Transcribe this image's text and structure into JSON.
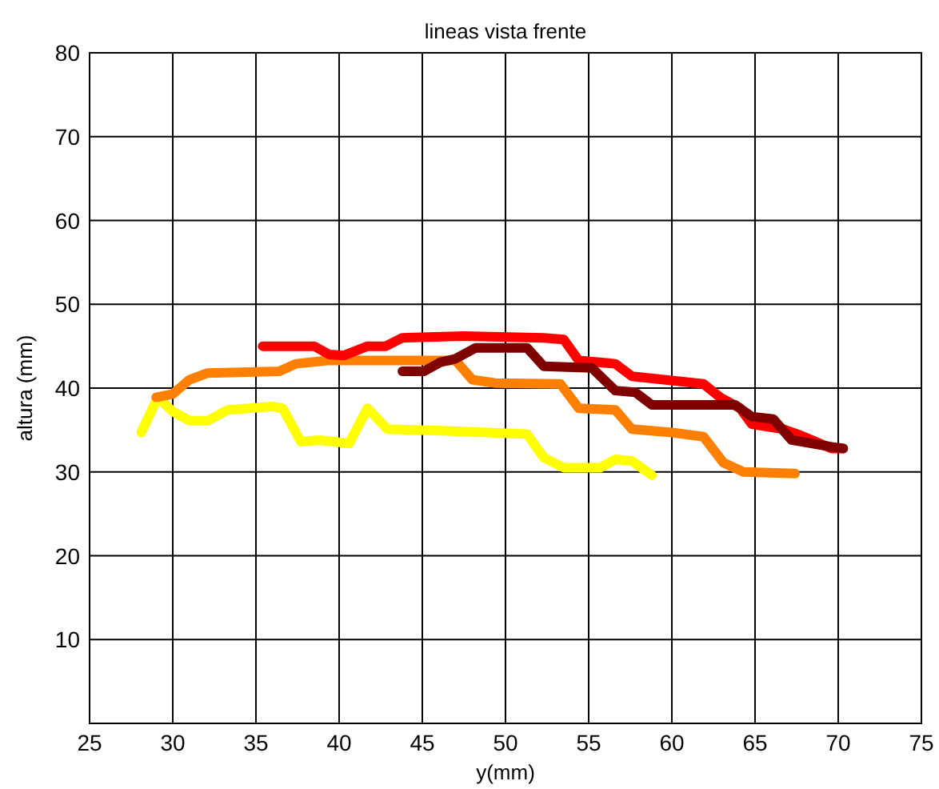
{
  "chart_data": {
    "type": "line",
    "title": "lineas vista frente",
    "xlabel": "y(mm)",
    "ylabel": "altura (mm)",
    "xlim": [
      25,
      75
    ],
    "xticks": [
      25,
      30,
      35,
      40,
      45,
      50,
      55,
      60,
      65,
      70,
      75
    ],
    "ylim": [
      0,
      80
    ],
    "yticks": [
      {
        "value": 0,
        "label": null
      },
      10,
      20,
      30,
      40,
      50,
      60,
      70,
      80
    ],
    "grid": true,
    "marker": "none",
    "line_style": "solid",
    "series": [
      {
        "color": "#ffff00",
        "x": [
          28.1,
          29.1,
          30,
          31,
          32.1,
          33.3,
          36,
          36.6,
          37.7,
          38.8,
          40.6,
          41.7,
          42.9,
          46.5,
          51.3,
          52.3,
          53.5,
          55.7,
          56.6,
          57.6,
          58.8
        ],
        "values": [
          34.7,
          38.9,
          37.2,
          36.1,
          36.1,
          37.4,
          37.8,
          37.6,
          33.6,
          33.8,
          33.4,
          37.6,
          35.1,
          34.9,
          34.5,
          31.7,
          30.5,
          30.5,
          31.5,
          31.3,
          29.6
        ]
      },
      {
        "color": "#ff8000",
        "x": [
          29,
          30,
          31,
          32.1,
          36.4,
          37.4,
          39.3,
          47,
          48,
          49.4,
          53.3,
          54.4,
          56.6,
          57.6,
          60,
          61.9,
          63.1,
          64.3,
          67.4
        ],
        "values": [
          38.9,
          39.3,
          41,
          41.8,
          42,
          42.9,
          43.3,
          43.3,
          41,
          40.6,
          40.5,
          37.6,
          37.4,
          35.1,
          34.7,
          34.2,
          31.1,
          30,
          29.8
        ]
      },
      {
        "color": "#ff0000",
        "x": [
          35.4,
          38.5,
          39.4,
          40.3,
          41.7,
          42.8,
          43.8,
          47.5,
          52.3,
          53.5,
          54.4,
          56.6,
          57.6,
          61.9,
          62.9,
          64.1,
          64.8,
          66.7,
          67.7,
          69.6,
          70.3
        ],
        "values": [
          45,
          45,
          44,
          43.9,
          45,
          45,
          46,
          46.2,
          46,
          45.8,
          43.3,
          42.9,
          41.4,
          40.5,
          38.9,
          37.6,
          35.7,
          35.1,
          34.4,
          32.8,
          32.8
        ]
      },
      {
        "color": "#800000",
        "x": [
          43.8,
          45.1,
          46.1,
          47,
          48.2,
          51.3,
          52.3,
          55.2,
          56.6,
          57.8,
          58.8,
          63.8,
          64.8,
          66.1,
          67.2,
          69.6,
          70.3
        ],
        "values": [
          42,
          42,
          43.1,
          43.5,
          44.8,
          44.8,
          42.6,
          42.4,
          39.7,
          39.5,
          38,
          38,
          36.6,
          36.3,
          33.8,
          33,
          32.8
        ]
      }
    ]
  }
}
